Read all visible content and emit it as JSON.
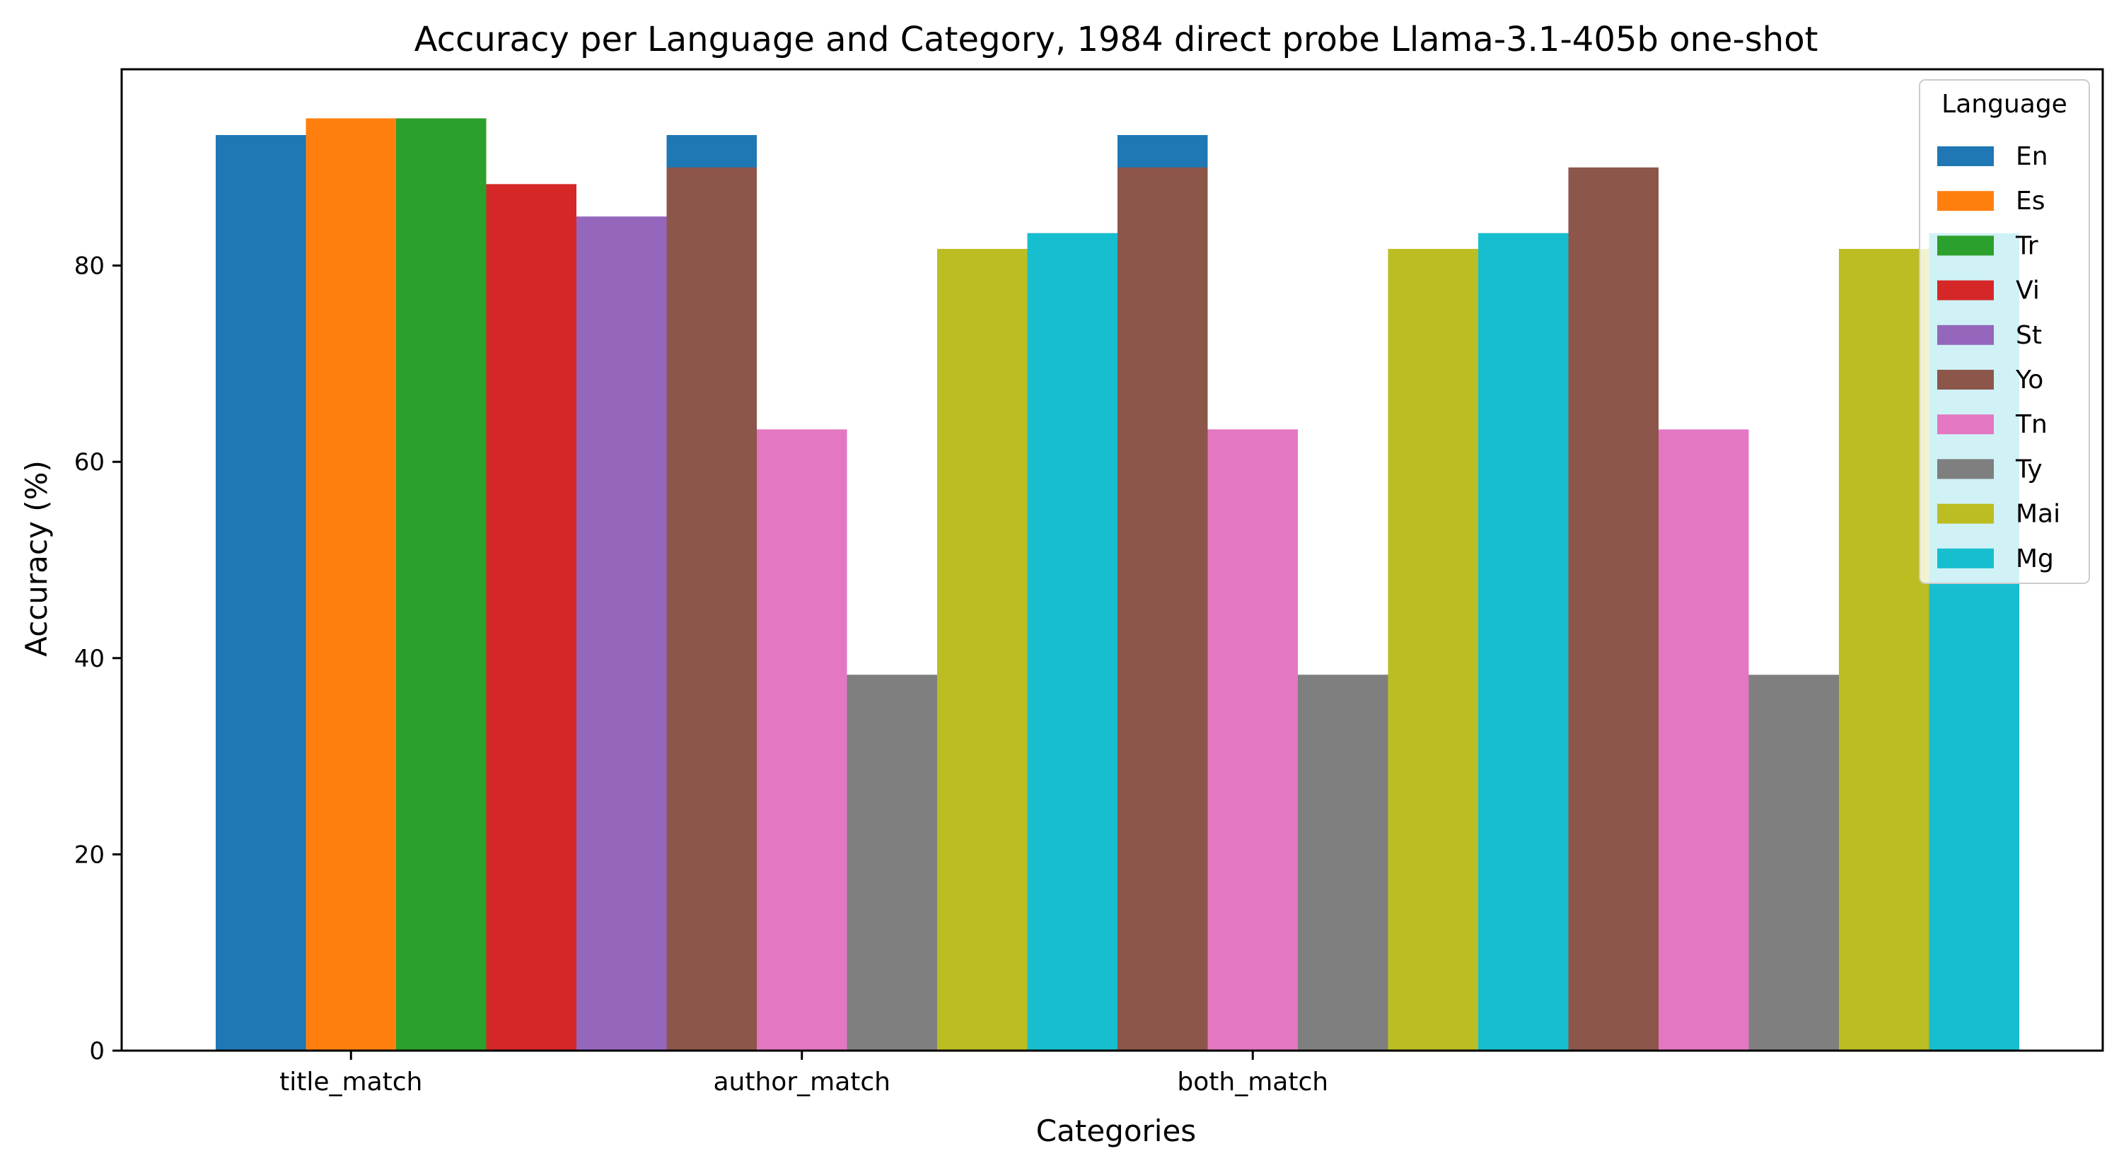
{
  "chart_data": {
    "type": "bar",
    "title": "Accuracy per Language and Category, 1984 direct probe Llama-3.1-405b one-shot",
    "xlabel": "Categories",
    "ylabel": "Accuracy (%)",
    "ylim": [
      0,
      100
    ],
    "yticks": [
      0,
      20,
      40,
      60,
      80
    ],
    "categories": [
      "title_match",
      "author_match",
      "both_match"
    ],
    "legend_title": "Language",
    "legend_position": "top-right",
    "grid": false,
    "series": [
      {
        "name": "En",
        "color": "#1f77b4",
        "values": [
          93.3,
          93.3,
          93.3
        ]
      },
      {
        "name": "Es",
        "color": "#ff7f0e",
        "values": [
          95.0,
          63.3,
          63.3
        ]
      },
      {
        "name": "Tr",
        "color": "#2ca02c",
        "values": [
          95.0,
          38.3,
          38.3
        ]
      },
      {
        "name": "Vi",
        "color": "#d62728",
        "values": [
          88.3,
          81.7,
          81.7
        ]
      },
      {
        "name": "St",
        "color": "#9467bd",
        "values": [
          85.0,
          83.3,
          83.3
        ]
      },
      {
        "name": "Yo",
        "color": "#8c564b",
        "values": [
          90.0,
          90.0,
          90.0
        ]
      },
      {
        "name": "Tn",
        "color": "#e377c2",
        "values": [
          63.3,
          63.3,
          63.3
        ]
      },
      {
        "name": "Ty",
        "color": "#7f7f7f",
        "values": [
          38.3,
          38.3,
          38.3
        ]
      },
      {
        "name": "Mai",
        "color": "#bcbd22",
        "values": [
          81.7,
          81.7,
          81.7
        ]
      },
      {
        "name": "Mg",
        "color": "#17becf",
        "values": [
          83.3,
          83.3,
          83.3
        ]
      }
    ]
  }
}
